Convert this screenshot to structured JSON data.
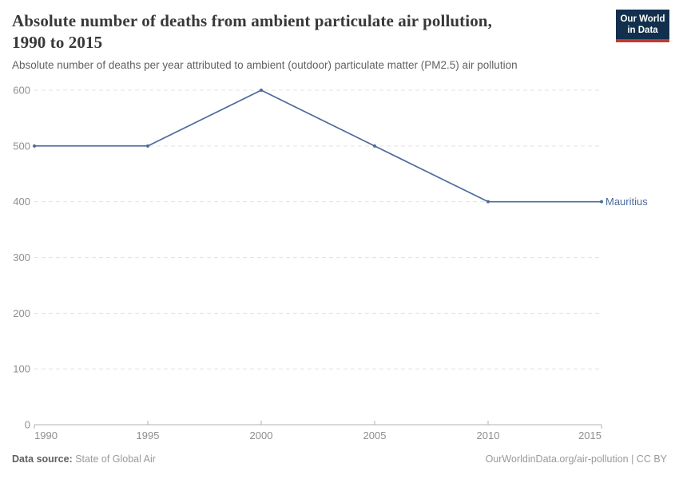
{
  "header": {
    "title_lines": [
      "Absolute number of deaths from ambient particulate air pollution,",
      "1990 to 2015"
    ],
    "subtitle": "Absolute number of deaths per year attributed to ambient (outdoor) particulate matter (PM2.5) air pollution",
    "logo_lines": [
      "Our World",
      "in Data"
    ]
  },
  "chart_data": {
    "type": "line",
    "title": "Absolute number of deaths from ambient particulate air pollution, 1990 to 2015",
    "subtitle": "Absolute number of deaths per year attributed to ambient (outdoor) particulate matter (PM2.5) air pollution",
    "x": [
      1990,
      1995,
      2000,
      2005,
      2010,
      2015
    ],
    "series": [
      {
        "name": "Mauritius",
        "values": [
          500,
          500,
          600,
          500,
          400,
          400
        ],
        "color": "#4c6a9c"
      }
    ],
    "xlim": [
      1990,
      2015
    ],
    "ylim": [
      0,
      600
    ],
    "xticks": [
      1990,
      1995,
      2000,
      2005,
      2010,
      2015
    ],
    "yticks": [
      0,
      100,
      200,
      300,
      400,
      500,
      600
    ],
    "grid": "dashed-horizontal",
    "legend": "inline-end-label",
    "xlabel": "",
    "ylabel": ""
  },
  "colors": {
    "line": "#4c6a9c",
    "gridline": "#e3e3e3",
    "axis": "#b0b0b0",
    "tick_label": "#8f8f8f",
    "entity_label": "#4c6a9c",
    "logo_bg": "#12304e",
    "logo_stripe": "#c1392f"
  },
  "footer": {
    "source_label": "Data source:",
    "source_value": " State of Global Air",
    "link": "OurWorldinData.org/air-pollution | CC BY"
  }
}
